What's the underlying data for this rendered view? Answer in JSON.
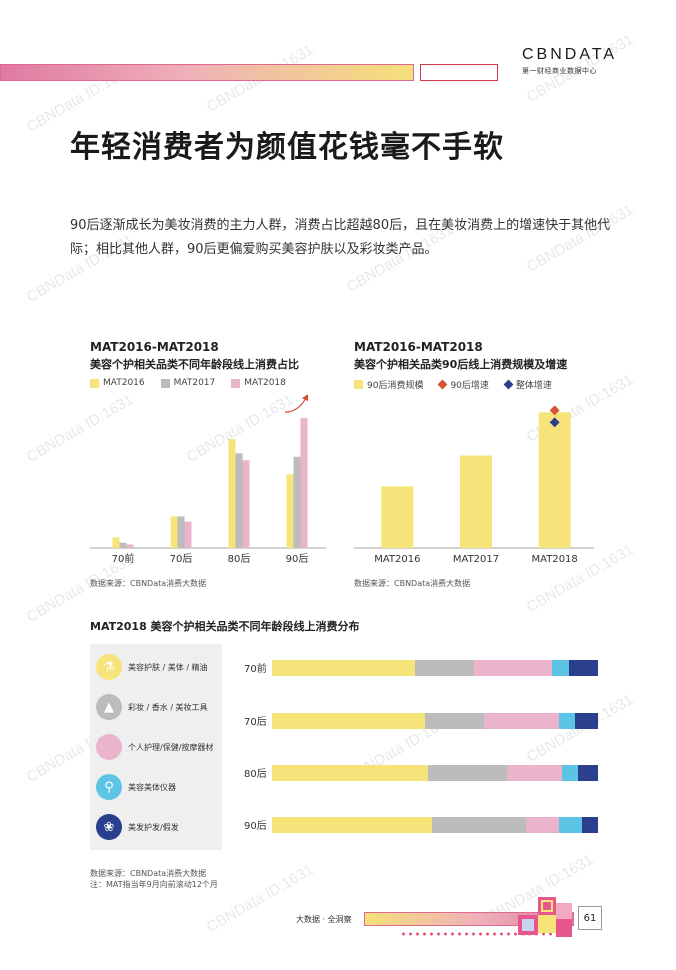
{
  "header": {
    "logo_main": "CBNDATA",
    "logo_sub": "第一财经商业数据中心"
  },
  "page_title": "年轻消费者为颜值花钱毫不手软",
  "intro": "90后逐渐成长为美妆消费的主力人群，消费占比超越80后，且在美妆消费上的增速快于其他代际；相比其他人群，90后更偏爱购买美容护肤以及彩妆类产品。",
  "watermark": "CBNData ID:1631",
  "colors": {
    "yellow": "#f6e47a",
    "gray": "#bcbcbc",
    "pink": "#eab5cc",
    "cyan": "#5cc5e6",
    "navy": "#2b3f8f",
    "orange_red": "#d5532f"
  },
  "chart_data": [
    {
      "type": "bar",
      "period": "MAT2016-MAT2018",
      "title": "美容个护相关品类不同年龄段线上消费占比",
      "categories": [
        "70前",
        "70后",
        "80后",
        "90后"
      ],
      "series": [
        {
          "name": "MAT2016",
          "values": [
            3,
            9,
            31,
            21
          ]
        },
        {
          "name": "MAT2017",
          "values": [
            1.5,
            9,
            27,
            26
          ]
        },
        {
          "name": "MAT2018",
          "values": [
            1,
            7.5,
            25,
            37
          ]
        }
      ],
      "ylim": [
        0,
        45
      ],
      "annotation": "arrow-up-90后",
      "source": "数据来源：CBNData消费大数据"
    },
    {
      "type": "bar",
      "period": "MAT2016-MAT2018",
      "title": "美容个护相关品类90后线上消费规模及增速",
      "categories": [
        "MAT2016",
        "MAT2017",
        "MAT2018"
      ],
      "series": [
        {
          "name": "90后消费规模",
          "values": [
            1.0,
            1.5,
            2.2
          ]
        },
        {
          "name": "90后增速",
          "values": [
            null,
            null,
            1
          ]
        },
        {
          "name": "整体增速",
          "values": [
            null,
            null,
            0.85
          ]
        }
      ],
      "ylim": [
        0,
        2.4
      ],
      "source": "数据来源：CBNData消费大数据"
    },
    {
      "type": "bar",
      "stacked": true,
      "orientation": "horizontal",
      "title": "MAT2018 美容个护相关品类不同年龄段线上消费分布",
      "categories": [
        "70前",
        "70后",
        "80后",
        "90后"
      ],
      "series": [
        {
          "name": "美容护肤 / 美体 / 精油",
          "values": [
            44,
            47,
            48,
            49
          ]
        },
        {
          "name": "彩妆 / 香水 / 美妆工具",
          "values": [
            18,
            18,
            24,
            29
          ]
        },
        {
          "name": "个人护理/保健/按摩器材",
          "values": [
            24,
            23,
            17,
            10
          ]
        },
        {
          "name": "美容美体仪器",
          "values": [
            5,
            5,
            5,
            7
          ]
        },
        {
          "name": "美发护发/假发",
          "values": [
            9,
            7,
            6,
            5
          ]
        }
      ],
      "xlim": [
        0,
        100
      ],
      "source": [
        "数据来源：CBNData消费大数据",
        "注：MAT指当年9月向前滚动12个月"
      ]
    }
  ],
  "footer": {
    "tagline": "大数据 · 全洞察",
    "page_number": "61"
  }
}
